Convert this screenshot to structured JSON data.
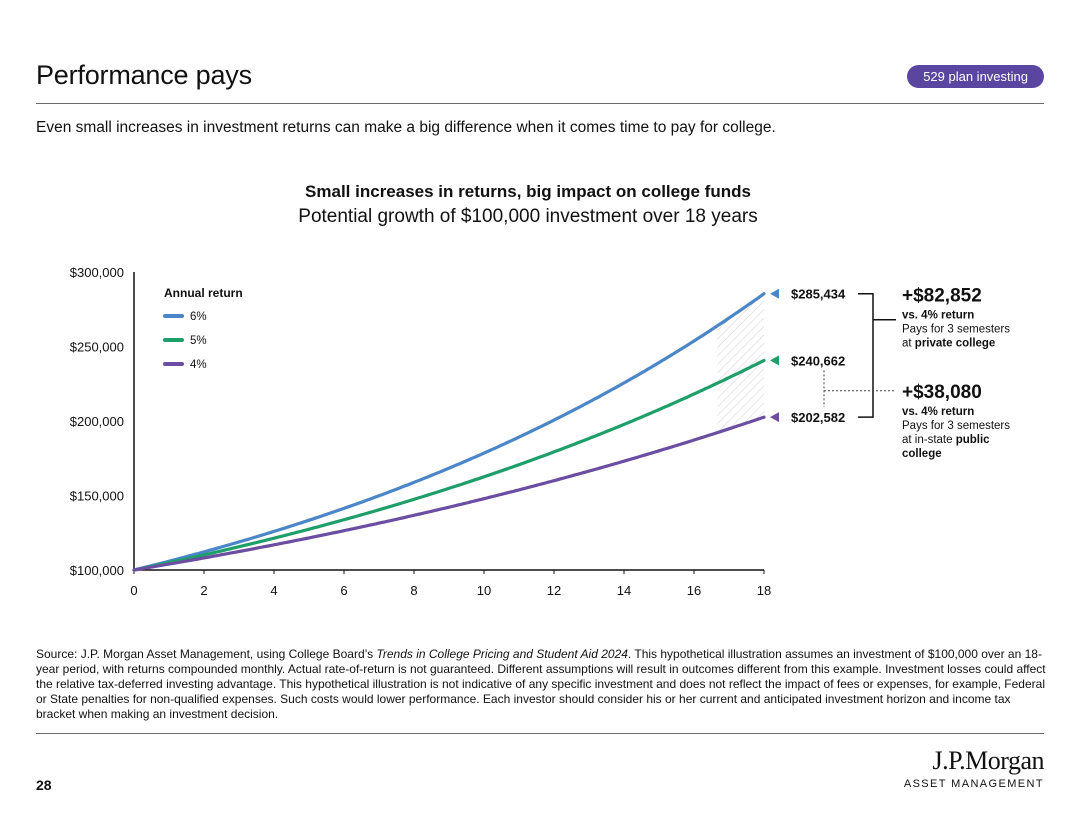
{
  "header": {
    "title": "Performance pays",
    "badge": "529 plan investing",
    "intro": "Even small increases in investment returns can make a big difference when it comes time to pay for college."
  },
  "chart_data": {
    "type": "line",
    "title": "Small increases in returns, big impact on college funds",
    "subtitle": "Potential growth of $100,000 investment over 18 years",
    "xlabel": "",
    "ylabel": "",
    "xlim": [
      0,
      18
    ],
    "ylim": [
      100000,
      300000
    ],
    "x_ticks": [
      0,
      2,
      4,
      6,
      8,
      10,
      12,
      14,
      16,
      18
    ],
    "y_ticks": [
      {
        "value": 100000,
        "label": "$100,000"
      },
      {
        "value": 150000,
        "label": "$150,000"
      },
      {
        "value": 200000,
        "label": "$200,000"
      },
      {
        "value": 250000,
        "label": "$250,000"
      },
      {
        "value": 300000,
        "label": "$300,000"
      }
    ],
    "grid": false,
    "legend_title": "Annual return",
    "legend_position": "top-left",
    "compounding": "monthly",
    "series": [
      {
        "name": "6%",
        "rate": 0.06,
        "color": "#4a86c8",
        "end_value": 285434,
        "end_label": "$285,434"
      },
      {
        "name": "5%",
        "rate": 0.05,
        "color": "#1e9f6a",
        "end_value": 240662,
        "end_label": "$240,662"
      },
      {
        "name": "4%",
        "rate": 0.04,
        "color": "#6b4ea2",
        "end_value": 202582,
        "end_label": "$202,582"
      }
    ],
    "annotations": [
      {
        "value": "+$82,852",
        "line1": "vs. 4% return",
        "line2": "Pays for 3 semesters",
        "line3_prefix": "at ",
        "line3_bold": "private college",
        "line4_bold": ""
      },
      {
        "value": "+$38,080",
        "line1": "vs. 4% return",
        "line2": "Pays for 3 semesters",
        "line3_prefix": "at in-state ",
        "line3_bold": "public",
        "line4_bold": "college"
      }
    ]
  },
  "footer": {
    "source_prefix": "Source: J.P. Morgan Asset Management, using College Board’s ",
    "source_italic": "Trends in College Pricing and Student Aid 2024",
    "source_rest": ". This hypothetical illustration assumes an investment of $100,000 over an 18-year period, with returns compounded monthly. Actual rate-of-return is not guaranteed. Different assumptions will result in outcomes different from this example. Investment losses could affect the relative tax-deferred investing advantage. This hypothetical illustration is not indicative of any specific investment and does not reflect the impact of fees or expenses, for example, Federal or State penalties for non-qualified expenses. Such costs would lower performance. Each investor should consider his or her current and anticipated investment horizon and income tax bracket when making an investment decision.",
    "page_number": "28",
    "logo_main": "J.P.Morgan",
    "logo_sub": "ASSET MANAGEMENT"
  }
}
